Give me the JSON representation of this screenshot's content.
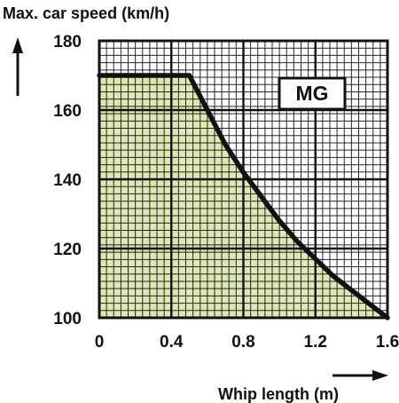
{
  "chart_data": {
    "type": "area",
    "title": "",
    "ylabel": "Max. car speed (km/h)",
    "xlabel": "Whip length (m)",
    "xlim": [
      0,
      1.6
    ],
    "ylim": [
      100,
      180
    ],
    "x_ticks": [
      "0",
      "0.4",
      "0.8",
      "1.2",
      "1.6"
    ],
    "y_ticks": [
      "180",
      "160",
      "140",
      "120",
      "100"
    ],
    "x_tick_values": [
      0,
      0.4,
      0.8,
      1.2,
      1.6
    ],
    "y_tick_values": [
      180,
      160,
      140,
      120,
      100
    ],
    "series": [
      {
        "x": [
          0,
          0.5,
          0.6,
          0.7,
          0.8,
          0.9,
          1.0,
          1.1,
          1.2,
          1.3,
          1.4,
          1.5,
          1.6
        ],
        "values": [
          170,
          170,
          160,
          150,
          142,
          135,
          128,
          122,
          117,
          112,
          108,
          104,
          100
        ]
      }
    ],
    "grid": true,
    "annotation": "MG",
    "fill_color": "#dde8b2",
    "line_color": "#111111",
    "grid_color": "#111111"
  }
}
